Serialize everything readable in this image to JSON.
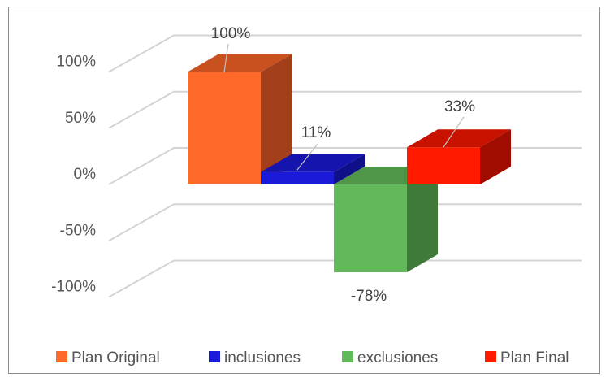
{
  "chart_data": {
    "type": "bar",
    "categories": [
      "Plan Original",
      "inclusiones",
      "exclusiones",
      "Plan Final"
    ],
    "values": [
      100,
      11,
      -78,
      33
    ],
    "data_labels": [
      "100%",
      "11%",
      "-78%",
      "33%"
    ],
    "series": [
      {
        "name": "Plan Original",
        "value": 100,
        "color": "#ff6a2a",
        "side": "#a3401b",
        "top": "#c9511f"
      },
      {
        "name": "inclusiones",
        "value": 11,
        "color": "#1a1ad8",
        "side": "#0f0f8a",
        "top": "#1515ad"
      },
      {
        "name": "exclusiones",
        "value": -78,
        "color": "#63b85c",
        "side": "#3f7a39",
        "top": "#4f9648"
      },
      {
        "name": "Plan Final",
        "value": 33,
        "color": "#ff1a00",
        "side": "#a00d00",
        "top": "#c81200"
      }
    ],
    "y_ticks": [
      "100%",
      "50%",
      "0%",
      "-50%",
      "-100%"
    ],
    "ylim": [
      -100,
      100
    ],
    "grid": true,
    "legend_position": "bottom",
    "style": "3d-clustered-column"
  }
}
